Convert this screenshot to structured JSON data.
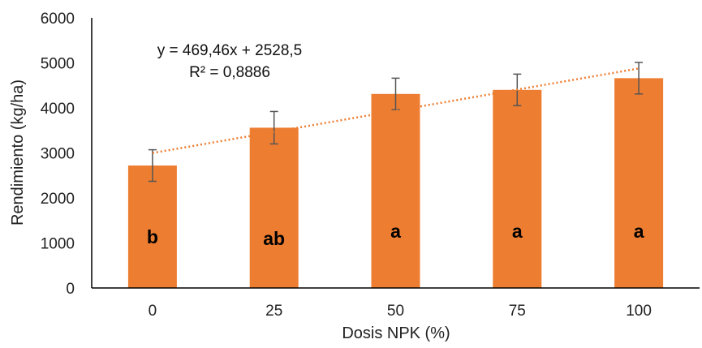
{
  "chart_data": {
    "type": "bar",
    "categories": [
      "0",
      "25",
      "50",
      "75",
      "100"
    ],
    "values": [
      2720,
      3560,
      4310,
      4400,
      4660
    ],
    "errors": [
      350,
      360,
      350,
      350,
      350
    ],
    "significance": [
      "b",
      "ab",
      "a",
      "a",
      "a"
    ],
    "xlabel": "Dosis NPK (%)",
    "ylabel": "Rendimiento (kg/ha)",
    "ylim": [
      0,
      6000
    ],
    "yticks": [
      "0",
      "1000",
      "2000",
      "3000",
      "4000",
      "5000",
      "6000"
    ],
    "trendline": {
      "type": "linear",
      "slope": 469.46,
      "intercept": 2528.5,
      "equation": "y = 469,46x + 2528,5",
      "r_squared": "R² = 0,8886"
    },
    "grid": false,
    "legend": "none",
    "colors": {
      "bar": "#ED7D31",
      "trend": "#ED7D31",
      "error": "#555555",
      "axis": "#000000"
    }
  }
}
